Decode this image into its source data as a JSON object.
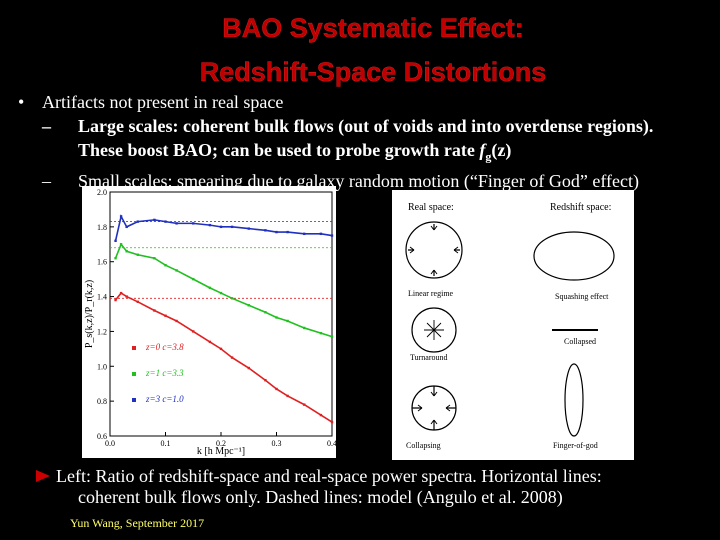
{
  "slide": {
    "title_line1": "BAO Systematic Effect:",
    "title_line2": "Redshift-Space Distortions",
    "bullet_mark": "•",
    "bullet": "Artifacts not present in real space",
    "sub1_dash": "–",
    "sub1_line1": "Large scales: coherent bulk flows (out of voids and into overdense regions).",
    "sub1_line2_prefix": "These boost BAO; can be used to probe growth rate ",
    "sub1_f": "f",
    "sub1_g": "g",
    "sub1_z": "(z)",
    "sub2_dash": "–",
    "sub2": "Small scales: smearing due to galaxy random motion (“Finger of God” effect)",
    "caption_line1": "Left: Ratio of redshift-space and real-space power spectra. Horizontal lines:",
    "caption_line2": "coherent bulk flows only. Dashed lines: model (Angulo et al. 2008)",
    "footer": "Yun Wang, September 2017"
  },
  "left_plot": {
    "ylabel": "P_s(k,z)/P_r(k,z)",
    "xlabel": "k [h Mpc⁻¹]",
    "yticks": [
      "2.0",
      "1.8",
      "1.6",
      "1.4",
      "1.2",
      "1.0",
      "0.8",
      "0.6"
    ],
    "xticks": [
      "0.0",
      "0.1",
      "0.2",
      "0.3",
      "0.4"
    ],
    "legend": [
      {
        "label": "z=0  c=3.8",
        "color": "#e02020"
      },
      {
        "label": "z=1  c=3.3",
        "color": "#20c020"
      },
      {
        "label": "z=3  c=1.0",
        "color": "#2030c0"
      }
    ]
  },
  "right_diagram": {
    "col_real": "Real space:",
    "col_redshift": "Redshift space:",
    "row1_right": "Squashing effect",
    "row1_left": "Linear regime",
    "row2_left": "Turnaround",
    "row2_right": "Collapsed",
    "row3_left": "Collapsing",
    "row3_right": "Finger-of-god"
  },
  "chart_data": {
    "type": "scatter",
    "title": "",
    "xlabel": "k [h Mpc⁻¹]",
    "ylabel": "P_s(k,z)/P_r(k,z)",
    "xlim": [
      0.0,
      0.4
    ],
    "ylim": [
      0.6,
      2.0
    ],
    "series": [
      {
        "name": "z=0  c=3.8",
        "color": "#e02020",
        "hline": 1.39,
        "x": [
          0.01,
          0.02,
          0.03,
          0.05,
          0.08,
          0.1,
          0.12,
          0.15,
          0.18,
          0.2,
          0.22,
          0.25,
          0.28,
          0.3,
          0.32,
          0.35,
          0.38,
          0.4
        ],
        "y": [
          1.38,
          1.42,
          1.4,
          1.37,
          1.32,
          1.29,
          1.26,
          1.2,
          1.14,
          1.1,
          1.05,
          0.99,
          0.92,
          0.87,
          0.83,
          0.78,
          0.72,
          0.68
        ]
      },
      {
        "name": "z=1  c=3.3",
        "color": "#20c020",
        "hline": 1.68,
        "x": [
          0.01,
          0.02,
          0.03,
          0.05,
          0.08,
          0.1,
          0.12,
          0.15,
          0.18,
          0.2,
          0.22,
          0.25,
          0.28,
          0.3,
          0.32,
          0.35,
          0.38,
          0.4
        ],
        "y": [
          1.62,
          1.7,
          1.66,
          1.64,
          1.62,
          1.58,
          1.55,
          1.5,
          1.45,
          1.42,
          1.39,
          1.35,
          1.31,
          1.28,
          1.26,
          1.22,
          1.19,
          1.17
        ]
      },
      {
        "name": "z=3  c=1.0",
        "color": "#2030c0",
        "hline": 1.83,
        "x": [
          0.01,
          0.02,
          0.03,
          0.05,
          0.08,
          0.1,
          0.12,
          0.15,
          0.18,
          0.2,
          0.22,
          0.25,
          0.28,
          0.3,
          0.32,
          0.35,
          0.38,
          0.4
        ],
        "y": [
          1.72,
          1.86,
          1.8,
          1.83,
          1.84,
          1.83,
          1.82,
          1.82,
          1.81,
          1.8,
          1.8,
          1.79,
          1.78,
          1.77,
          1.77,
          1.76,
          1.76,
          1.75
        ]
      }
    ]
  }
}
